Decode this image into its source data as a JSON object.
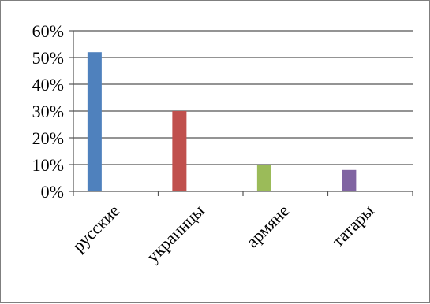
{
  "chart_data": {
    "type": "bar",
    "categories": [
      "русские",
      "украинцы",
      "армяне",
      "татары"
    ],
    "values": [
      52,
      30,
      10,
      8
    ],
    "value_unit": "%",
    "ylim": [
      0,
      60
    ],
    "yticks": [
      "0%",
      "10%",
      "20%",
      "30%",
      "40%",
      "50%",
      "60%"
    ],
    "colors": [
      "#4f81bd",
      "#c0504d",
      "#9bbb59",
      "#8064a2"
    ],
    "grid": true,
    "legend": "none"
  }
}
